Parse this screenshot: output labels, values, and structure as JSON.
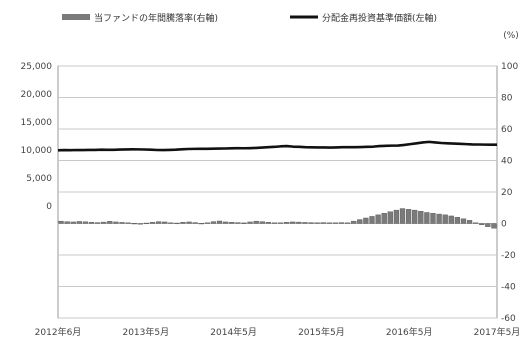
{
  "chart_data": {
    "type": "bar+line",
    "legend": [
      {
        "name": "当ファンドの年間騰落率(右軸)",
        "kind": "bar",
        "color": "#7a7a7a"
      },
      {
        "name": "分配金再投資基準価額(左軸)",
        "kind": "line",
        "color": "#111111"
      }
    ],
    "left_axis": {
      "ticks": [
        "25,000",
        "20,000",
        "15,000",
        "10,000",
        "5,000",
        "0"
      ],
      "ylim": [
        -20000,
        25000
      ]
    },
    "right_axis": {
      "unit": "(%)",
      "ticks": [
        "100",
        "80",
        "60",
        "40",
        "20",
        "0",
        "-20",
        "-40",
        "-60"
      ],
      "ylim": [
        -60,
        100
      ]
    },
    "x_axis": {
      "ticks": [
        "2012年6月",
        "2013年5月",
        "2014年5月",
        "2015年5月",
        "2016年5月",
        "2017年5月"
      ]
    },
    "grid": true,
    "series_line": {
      "name": "分配金再投資基準価額(左軸)",
      "values": [
        9950,
        9980,
        9960,
        10000,
        9990,
        10010,
        10020,
        10050,
        10040,
        10030,
        10080,
        10100,
        10120,
        10110,
        10090,
        10050,
        10000,
        9980,
        10010,
        10050,
        10120,
        10180,
        10200,
        10220,
        10220,
        10230,
        10250,
        10270,
        10300,
        10320,
        10310,
        10330,
        10370,
        10430,
        10500,
        10560,
        10650,
        10700,
        10600,
        10560,
        10500,
        10480,
        10450,
        10450,
        10440,
        10460,
        10500,
        10500,
        10500,
        10530,
        10560,
        10600,
        10700,
        10750,
        10780,
        10800,
        10900,
        11050,
        11200,
        11350,
        11450,
        11350,
        11250,
        11200,
        11150,
        11100,
        11050,
        11000,
        10980,
        10960,
        10950,
        10950
      ]
    },
    "series_bar": {
      "name": "当ファンドの年間騰落率(右軸)",
      "values": [
        1.5,
        1.2,
        1.0,
        1.3,
        1.1,
        0.8,
        0.6,
        0.9,
        1.4,
        1.0,
        0.7,
        0.5,
        0.2,
        0.0,
        0.3,
        0.8,
        1.2,
        1.0,
        0.5,
        0.3,
        0.8,
        1.0,
        0.6,
        0.2,
        0.5,
        1.2,
        1.6,
        1.0,
        0.8,
        0.6,
        0.4,
        1.0,
        1.5,
        1.2,
        0.8,
        0.5,
        0.5,
        0.8,
        1.0,
        0.9,
        0.7,
        0.6,
        0.5,
        0.6,
        0.5,
        0.5,
        0.6,
        0.5,
        1.5,
        2.5,
        3.5,
        4.5,
        5.5,
        6.5,
        7.5,
        8.5,
        9.5,
        9.0,
        8.5,
        7.8,
        7.0,
        6.5,
        6.0,
        5.5,
        4.8,
        4.0,
        3.0,
        2.0,
        0.5,
        -0.8,
        -2.0,
        -3.0
      ]
    }
  }
}
